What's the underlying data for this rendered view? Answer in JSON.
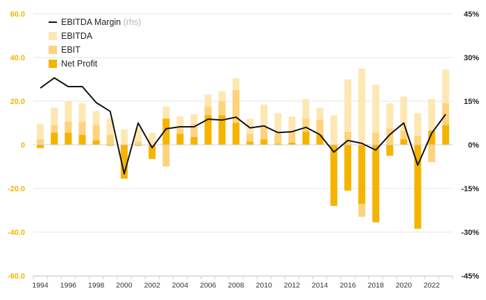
{
  "chart_data": {
    "type": "bar+line",
    "title": "",
    "x": [
      1994,
      1995,
      1996,
      1997,
      1998,
      1999,
      2000,
      2001,
      2002,
      2003,
      2004,
      2005,
      2006,
      2007,
      2008,
      2009,
      2010,
      2011,
      2012,
      2013,
      2014,
      2015,
      2016,
      2017,
      2018,
      2019,
      2020,
      2021,
      2022,
      2023
    ],
    "x_tick_labels": [
      "1994",
      "1996",
      "1998",
      "2000",
      "2002",
      "2004",
      "2006",
      "2008",
      "2010",
      "2012",
      "2014",
      "2016",
      "2018",
      "2020",
      "2022"
    ],
    "y_left": {
      "ylim": [
        -60,
        60
      ],
      "ticks": [
        "60.0",
        "40.0",
        "20.0",
        "0",
        "-20.0",
        "-40.0",
        "-60.0"
      ],
      "tick_values": [
        60,
        40,
        20,
        0,
        -20,
        -40,
        -60
      ]
    },
    "y_right": {
      "ylim": [
        -45,
        45
      ],
      "ticks": [
        "45%",
        "30%",
        "15%",
        "0%",
        "-15%",
        "-30%",
        "-45%"
      ],
      "tick_values": [
        45,
        30,
        15,
        0,
        -15,
        -30,
        -45
      ]
    },
    "grid": true,
    "legend_position": "top-left",
    "series": [
      {
        "name": "EBITDA Margin",
        "name_suffix": "(rhs)",
        "axis": "right",
        "kind": "line",
        "color": "#111111",
        "values": [
          19.5,
          23,
          20,
          20,
          14.5,
          11.5,
          -10,
          7.5,
          -1,
          5.5,
          6.2,
          6.2,
          8.8,
          8.5,
          9.5,
          5.8,
          6.5,
          4.2,
          4.5,
          6,
          3.5,
          -2.5,
          1.5,
          0.5,
          -1.8,
          3.5,
          7.5,
          -7,
          4,
          10.5
        ]
      },
      {
        "name": "EBITDA",
        "axis": "left",
        "kind": "bar",
        "color": "#fde8b4",
        "values": [
          9.5,
          17,
          20,
          19,
          15.5,
          12,
          7,
          7.5,
          5.5,
          17.5,
          13,
          14,
          23,
          24.5,
          30.5,
          12,
          18.5,
          14.5,
          13,
          21,
          17,
          13.5,
          30,
          35,
          27.5,
          19,
          22,
          14.5,
          21,
          34.5
        ]
      },
      {
        "name": "EBIT",
        "axis": "left",
        "kind": "bar",
        "color": "#fdd47c",
        "values": [
          2.5,
          9,
          10.5,
          10.5,
          9,
          4.5,
          -12,
          1.5,
          -3.5,
          -10,
          7.5,
          9.5,
          17.5,
          20,
          25,
          5,
          8,
          5,
          6,
          12,
          11.5,
          -1,
          6,
          -33,
          5.5,
          7.5,
          6.5,
          4,
          -8,
          19
        ]
      },
      {
        "name": "Net Profit",
        "axis": "left",
        "kind": "bar",
        "color": "#f5b400",
        "values": [
          -1.5,
          5.5,
          5.5,
          4.5,
          2,
          -0.5,
          -15.5,
          -0.5,
          -6.5,
          12,
          5,
          3.5,
          13.5,
          13.5,
          10,
          1.5,
          2.5,
          0.5,
          1,
          6,
          4.5,
          -28,
          -21,
          -27,
          -35.5,
          -5,
          2.5,
          -38.5,
          6.5,
          9
        ]
      }
    ]
  }
}
